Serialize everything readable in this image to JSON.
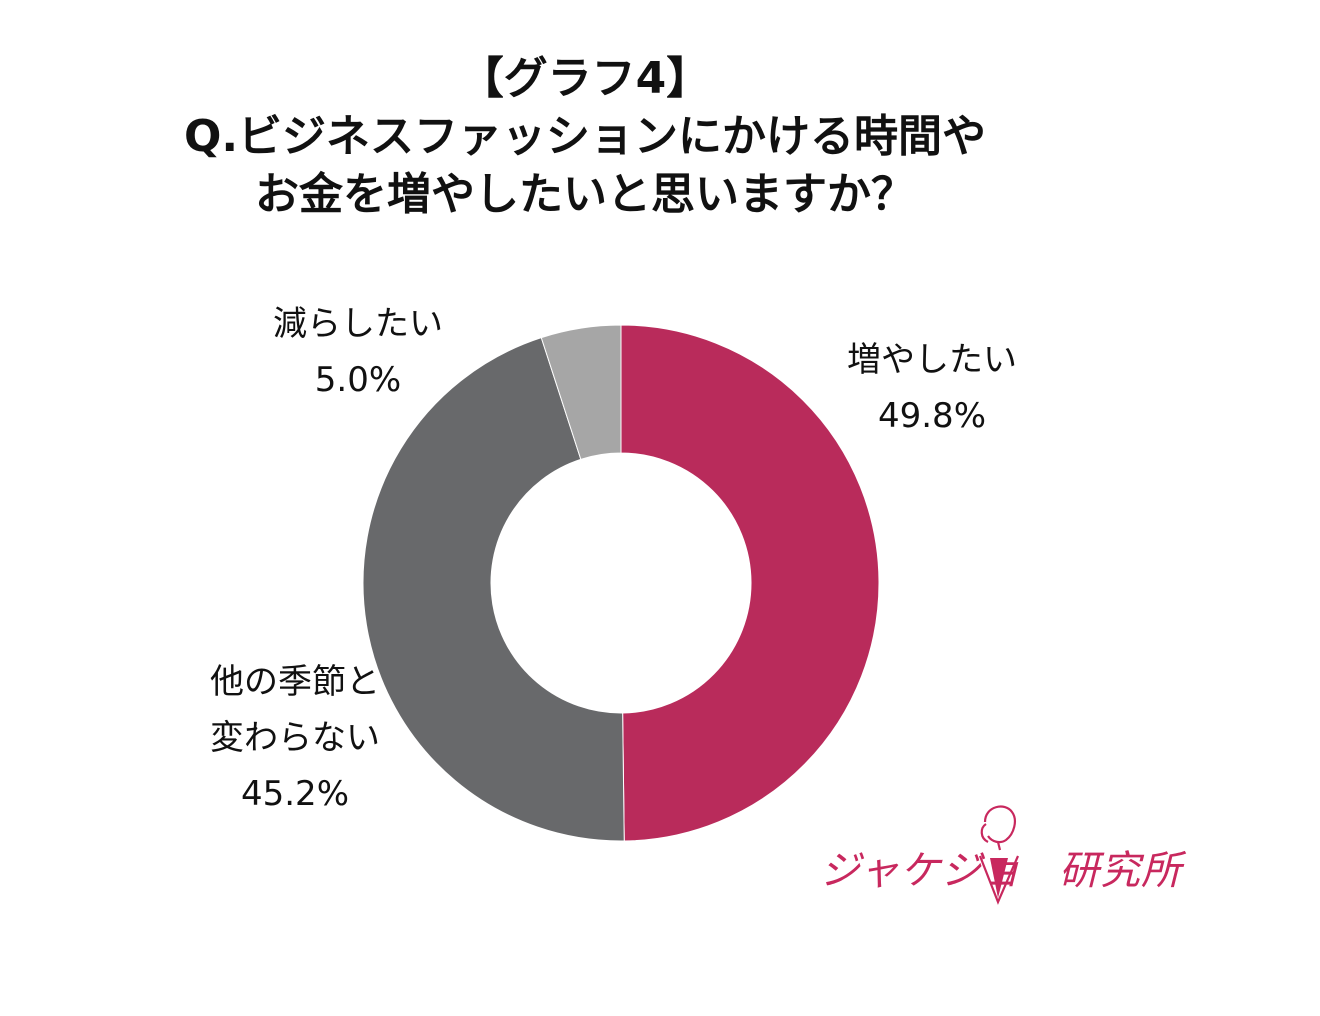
{
  "title": {
    "line1": "【グラフ4】",
    "line2": "Q.ビジネスファッションにかける時間や",
    "line3": "お金を増やしたいと思いますか？"
  },
  "chart_data": {
    "type": "pie",
    "donut": true,
    "slices": [
      {
        "label_lines": [
          "増やしたい"
        ],
        "value": 49.8,
        "value_label": "49.8%",
        "color": "#b92b5b"
      },
      {
        "label_lines": [
          "他の季節と",
          "変わらない"
        ],
        "value": 45.2,
        "value_label": "45.2%",
        "color": "#68696b"
      },
      {
        "label_lines": [
          "減らしたい"
        ],
        "value": 5.0,
        "value_label": "5.0%",
        "color": "#a6a6a6"
      }
    ]
  },
  "logo": {
    "text_left": "ジャケジョ",
    "text_right": "研究所",
    "color": "#c8285e"
  }
}
